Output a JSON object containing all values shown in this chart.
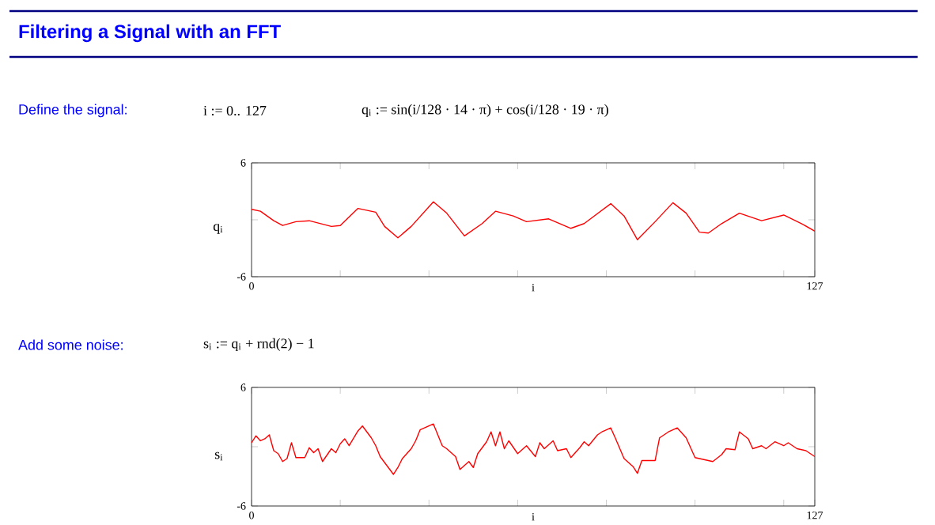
{
  "chart_data": [
    {
      "type": "line",
      "title": "Filtering a Signal with an FFT",
      "annotations": [
        "Define the signal:",
        "i := 0.. 127",
        "q$_{i}$ := sin(i/128 · 14 · π) + cos(i/128 · 19 · π)"
      ],
      "xlabel": "i",
      "ylabel": "q$_{i}$",
      "marker": "none",
      "line_style": "solid",
      "xlim": [
        0,
        127
      ],
      "ylim": [
        -6,
        6
      ],
      "xticks": [
        0,
        {
          "value": 20,
          "label": null
        },
        {
          "value": 40,
          "label": null
        },
        {
          "value": 60,
          "label": null
        },
        {
          "value": 80,
          "label": null
        },
        {
          "value": 100,
          "label": null
        },
        {
          "value": 120,
          "label": null
        },
        127
      ],
      "yticks": [
        -6,
        {
          "value": 0,
          "label": null
        },
        6
      ],
      "series": [
        {
          "color": "#ff0000",
          "x": [
            0,
            2,
            5,
            7,
            10,
            13,
            18,
            20,
            24,
            28,
            30,
            33,
            36,
            41,
            44,
            48,
            52,
            55,
            59,
            62,
            67,
            72,
            75,
            81,
            84,
            87,
            91,
            95,
            98,
            101,
            103,
            106,
            110,
            115,
            120,
            124,
            127
          ],
          "values": [
            1.1,
            0.9,
            -0.1,
            -0.6,
            -0.2,
            -0.1,
            -0.7,
            -0.6,
            1.2,
            0.8,
            -0.7,
            -1.9,
            -0.7,
            1.9,
            0.7,
            -1.7,
            -0.4,
            0.9,
            0.4,
            -0.2,
            0.1,
            -0.9,
            -0.4,
            1.7,
            0.4,
            -2.1,
            -0.2,
            1.8,
            0.7,
            -1.3,
            -1.4,
            -0.4,
            0.7,
            -0.1,
            0.5,
            -0.4,
            -1.2
          ]
        }
      ]
    },
    {
      "type": "line",
      "annotations": [
        "Add some noise:",
        "s$_{i}$ := q$_{i}$ + rnd(2) − 1"
      ],
      "xlabel": "i",
      "ylabel": "s$_{i}$",
      "marker": "none",
      "line_style": "solid",
      "xlim": [
        0,
        127
      ],
      "ylim": [
        -6,
        6
      ],
      "xticks": [
        0,
        {
          "value": 20,
          "label": null
        },
        {
          "value": 40,
          "label": null
        },
        {
          "value": 60,
          "label": null
        },
        {
          "value": 80,
          "label": null
        },
        {
          "value": 100,
          "label": null
        },
        {
          "value": 120,
          "label": null
        },
        127
      ],
      "yticks": [
        -6,
        {
          "value": 0,
          "label": null
        },
        6
      ],
      "series": [
        {
          "color": "#ff0000",
          "x": [
            0,
            1,
            2,
            3,
            4,
            5,
            6,
            7,
            8,
            9,
            10,
            12,
            13,
            14,
            15,
            16,
            18,
            19,
            20,
            21,
            22,
            24,
            25,
            27,
            28,
            29,
            32,
            33,
            34,
            36,
            37,
            38,
            41,
            43,
            44,
            46,
            47,
            49,
            50,
            51,
            52,
            53,
            54,
            55,
            56,
            57,
            58,
            60,
            62,
            64,
            65,
            66,
            68,
            69,
            71,
            72,
            74,
            75,
            76,
            78,
            79,
            81,
            82,
            84,
            86,
            87,
            88,
            91,
            92,
            94,
            95,
            96,
            98,
            100,
            103,
            104,
            106,
            107,
            109,
            110,
            112,
            113,
            115,
            116,
            118,
            120,
            121,
            123,
            125,
            126,
            127
          ],
          "values": [
            0.4,
            1.1,
            0.6,
            0.8,
            1.2,
            -0.4,
            -0.7,
            -1.5,
            -1.2,
            0.4,
            -1.1,
            -1.1,
            -0.1,
            -0.6,
            -0.2,
            -1.5,
            -0.2,
            -0.6,
            0.3,
            0.8,
            0.1,
            1.6,
            2.1,
            0.9,
            0.1,
            -1.0,
            -2.8,
            -2.1,
            -1.2,
            -0.2,
            0.6,
            1.7,
            2.3,
            0.1,
            -0.2,
            -1.0,
            -2.3,
            -1.5,
            -2.1,
            -0.7,
            -0.1,
            0.5,
            1.5,
            0.1,
            1.5,
            -0.2,
            0.6,
            -0.7,
            0.1,
            -1.0,
            0.4,
            -0.2,
            0.6,
            -0.4,
            -0.2,
            -1.1,
            -0.1,
            0.5,
            0.1,
            1.2,
            1.5,
            1.9,
            0.9,
            -1.2,
            -2.0,
            -2.7,
            -1.4,
            -1.4,
            0.9,
            1.5,
            1.7,
            1.9,
            0.9,
            -1.1,
            -1.4,
            -1.5,
            -0.8,
            -0.2,
            -0.3,
            1.5,
            0.8,
            -0.2,
            0.1,
            -0.2,
            0.5,
            0.1,
            0.4,
            -0.2,
            -0.4,
            -0.7,
            -1.0
          ]
        }
      ]
    }
  ]
}
